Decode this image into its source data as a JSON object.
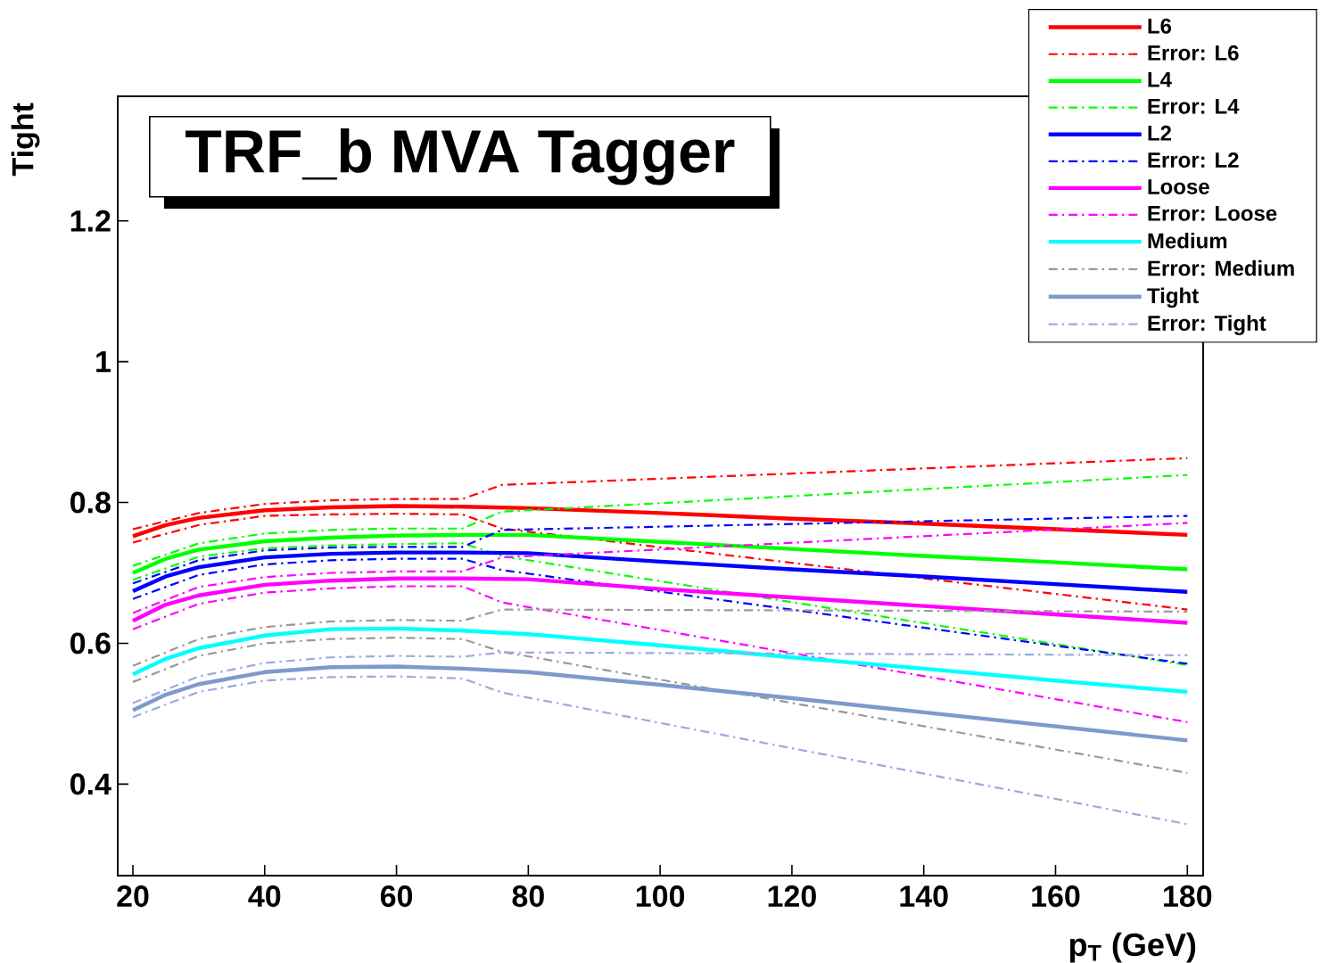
{
  "chart_data": {
    "type": "line",
    "title": "TRF_b MVA Tagger",
    "xlabel": "p$_{T}$ (GeV)",
    "ylabel": "Tight",
    "x": [
      20,
      25,
      30,
      40,
      50,
      60,
      70,
      80,
      100,
      120,
      140,
      160,
      180
    ],
    "xlim": [
      17.7,
      182.4
    ],
    "ylim": [
      0.27,
      1.377
    ],
    "xticks": [
      20,
      40,
      60,
      80,
      100,
      120,
      140,
      160,
      180
    ],
    "yticks": [
      0.4,
      0.6,
      0.8,
      1,
      1.2
    ],
    "legend": "top right",
    "series": [
      {
        "name": "L6",
        "color": "#ff0000",
        "values": [
          0.752,
          0.768,
          0.778,
          0.789,
          0.793,
          0.795,
          0.794,
          0.792,
          0.785,
          0.777,
          0.77,
          0.762,
          0.754
        ]
      },
      {
        "name": "Error: L6",
        "color": "#ff0000",
        "line_style": "dashed",
        "x": [
          20,
          30,
          40,
          50,
          60,
          70,
          76,
          180
        ],
        "values": [
          0.762,
          0.785,
          0.798,
          0.803,
          0.805,
          0.805,
          0.825,
          0.863
        ]
      },
      {
        "color": "#ff0000",
        "line_style": "dashed",
        "x": [
          20,
          30,
          40,
          50,
          60,
          70,
          76,
          180
        ],
        "values": [
          0.743,
          0.768,
          0.781,
          0.783,
          0.784,
          0.783,
          0.763,
          0.648
        ]
      },
      {
        "name": "L4",
        "color": "#00ff00",
        "values": [
          0.7,
          0.72,
          0.733,
          0.745,
          0.75,
          0.753,
          0.754,
          0.754,
          0.744,
          0.734,
          0.724,
          0.715,
          0.705
        ]
      },
      {
        "name": "Error: L4",
        "color": "#00ff00",
        "line_style": "dashed",
        "x": [
          20,
          30,
          40,
          50,
          60,
          70,
          76,
          180
        ],
        "values": [
          0.71,
          0.742,
          0.756,
          0.761,
          0.763,
          0.763,
          0.787,
          0.839
        ]
      },
      {
        "color": "#00ff00",
        "line_style": "dashed",
        "x": [
          20,
          30,
          40,
          50,
          60,
          70,
          76,
          180
        ],
        "values": [
          0.69,
          0.723,
          0.735,
          0.739,
          0.741,
          0.742,
          0.724,
          0.569
        ]
      },
      {
        "name": "L2",
        "color": "#0000ff",
        "values": [
          0.674,
          0.695,
          0.708,
          0.722,
          0.727,
          0.729,
          0.729,
          0.728,
          0.716,
          0.705,
          0.695,
          0.684,
          0.673
        ]
      },
      {
        "name": "Error: L2",
        "color": "#0000ff",
        "line_style": "dashed",
        "x": [
          20,
          30,
          40,
          50,
          60,
          70,
          76,
          180
        ],
        "values": [
          0.685,
          0.718,
          0.732,
          0.736,
          0.737,
          0.737,
          0.761,
          0.781
        ]
      },
      {
        "color": "#0000ff",
        "line_style": "dashed",
        "x": [
          20,
          30,
          40,
          50,
          60,
          70,
          76,
          180
        ],
        "values": [
          0.663,
          0.697,
          0.712,
          0.718,
          0.72,
          0.72,
          0.704,
          0.571
        ]
      },
      {
        "name": "Loose",
        "color": "#ff00ff",
        "values": [
          0.632,
          0.655,
          0.668,
          0.683,
          0.689,
          0.692,
          0.692,
          0.691,
          0.677,
          0.665,
          0.653,
          0.641,
          0.629
        ]
      },
      {
        "name": "Error: Loose",
        "color": "#ff00ff",
        "line_style": "dashed",
        "x": [
          20,
          30,
          40,
          50,
          60,
          70,
          76,
          180
        ],
        "values": [
          0.643,
          0.68,
          0.694,
          0.7,
          0.702,
          0.702,
          0.722,
          0.771
        ]
      },
      {
        "color": "#ff00ff",
        "line_style": "dashed",
        "x": [
          20,
          30,
          40,
          50,
          60,
          70,
          76,
          180
        ],
        "values": [
          0.62,
          0.656,
          0.672,
          0.678,
          0.681,
          0.681,
          0.658,
          0.488
        ]
      },
      {
        "name": "Medium",
        "color": "#00ffff",
        "values": [
          0.556,
          0.578,
          0.593,
          0.611,
          0.62,
          0.621,
          0.618,
          0.613,
          0.597,
          0.58,
          0.564,
          0.547,
          0.531
        ]
      },
      {
        "name": "Error: Medium",
        "color": "#999999",
        "line_style": "dashed",
        "x": [
          20,
          30,
          40,
          50,
          60,
          70,
          76,
          180
        ],
        "values": [
          0.568,
          0.606,
          0.623,
          0.631,
          0.633,
          0.632,
          0.648,
          0.645
        ]
      },
      {
        "color": "#999999",
        "line_style": "dashed",
        "x": [
          20,
          30,
          40,
          50,
          60,
          70,
          76,
          180
        ],
        "values": [
          0.545,
          0.582,
          0.6,
          0.606,
          0.608,
          0.606,
          0.588,
          0.416
        ]
      },
      {
        "name": "Tight",
        "color": "#7f99cc",
        "values": [
          0.505,
          0.527,
          0.542,
          0.559,
          0.566,
          0.567,
          0.564,
          0.559,
          0.541,
          0.522,
          0.502,
          0.482,
          0.462
        ]
      },
      {
        "name": "Error: Tight",
        "color": "#99aadd",
        "line_style": "dashed",
        "x": [
          20,
          30,
          40,
          50,
          60,
          70,
          76,
          180
        ],
        "values": [
          0.515,
          0.553,
          0.572,
          0.58,
          0.582,
          0.581,
          0.587,
          0.583
        ]
      },
      {
        "color": "#99aadd",
        "line_style": "dashed",
        "x": [
          20,
          30,
          40,
          50,
          60,
          70,
          76,
          180
        ],
        "values": [
          0.495,
          0.531,
          0.547,
          0.552,
          0.553,
          0.55,
          0.53,
          0.343
        ]
      }
    ]
  }
}
